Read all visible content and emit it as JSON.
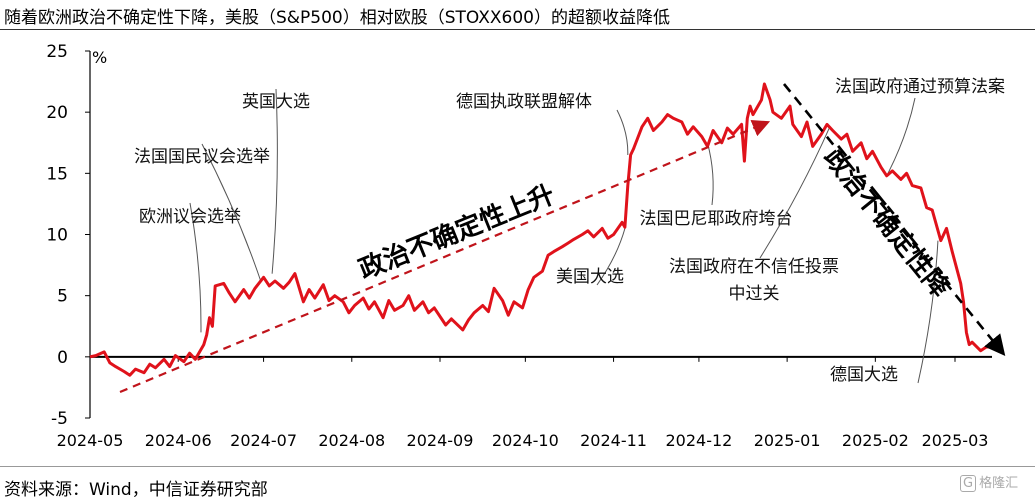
{
  "title": "随着欧洲政治不确定性下降，美股（S&P500）相对欧股（STOXX600）的超额收益降低",
  "source": "资料来源：Wind，中信证券研究部",
  "watermark": "格隆汇",
  "chart_data": {
    "type": "line",
    "unit": "%",
    "ylim": [
      -5,
      25
    ],
    "yticks": [
      -5,
      0,
      5,
      10,
      15,
      20,
      25
    ],
    "xticks": [
      "2024-05",
      "2024-06",
      "2024-07",
      "2024-08",
      "2024-09",
      "2024-10",
      "2024-11",
      "2024-12",
      "2025-01",
      "2025-02",
      "2025-03"
    ],
    "xlim": [
      "2024-05-01",
      "2025-03-14"
    ],
    "line_color": "#e0121b",
    "series": [
      {
        "name": "",
        "points": [
          [
            "2024-05-01",
            0.0
          ],
          [
            "2024-05-03",
            0.1
          ],
          [
            "2024-05-06",
            0.4
          ],
          [
            "2024-05-08",
            -0.5
          ],
          [
            "2024-05-10",
            -0.8
          ],
          [
            "2024-05-13",
            -1.2
          ],
          [
            "2024-05-15",
            -1.5
          ],
          [
            "2024-05-17",
            -1.0
          ],
          [
            "2024-05-20",
            -1.3
          ],
          [
            "2024-05-22",
            -0.6
          ],
          [
            "2024-05-24",
            -0.9
          ],
          [
            "2024-05-27",
            -0.2
          ],
          [
            "2024-05-29",
            -0.8
          ],
          [
            "2024-05-31",
            0.1
          ],
          [
            "2024-06-03",
            -0.4
          ],
          [
            "2024-06-05",
            0.3
          ],
          [
            "2024-06-07",
            -0.2
          ],
          [
            "2024-06-10",
            1.0
          ],
          [
            "2024-06-11",
            1.8
          ],
          [
            "2024-06-12",
            3.2
          ],
          [
            "2024-06-13",
            2.5
          ],
          [
            "2024-06-14",
            5.8
          ],
          [
            "2024-06-17",
            6.0
          ],
          [
            "2024-06-19",
            5.2
          ],
          [
            "2024-06-21",
            4.5
          ],
          [
            "2024-06-24",
            5.5
          ],
          [
            "2024-06-26",
            4.8
          ],
          [
            "2024-06-28",
            5.6
          ],
          [
            "2024-07-01",
            6.5
          ],
          [
            "2024-07-03",
            5.8
          ],
          [
            "2024-07-05",
            6.2
          ],
          [
            "2024-07-08",
            5.6
          ],
          [
            "2024-07-10",
            6.1
          ],
          [
            "2024-07-12",
            6.8
          ],
          [
            "2024-07-15",
            4.5
          ],
          [
            "2024-07-17",
            5.5
          ],
          [
            "2024-07-19",
            4.8
          ],
          [
            "2024-07-22",
            5.9
          ],
          [
            "2024-07-24",
            4.6
          ],
          [
            "2024-07-26",
            5.0
          ],
          [
            "2024-07-29",
            4.5
          ],
          [
            "2024-07-31",
            3.6
          ],
          [
            "2024-08-02",
            4.2
          ],
          [
            "2024-08-05",
            4.8
          ],
          [
            "2024-08-07",
            3.9
          ],
          [
            "2024-08-09",
            4.5
          ],
          [
            "2024-08-12",
            3.2
          ],
          [
            "2024-08-14",
            4.6
          ],
          [
            "2024-08-16",
            3.8
          ],
          [
            "2024-08-19",
            4.2
          ],
          [
            "2024-08-21",
            5.0
          ],
          [
            "2024-08-23",
            3.8
          ],
          [
            "2024-08-26",
            4.5
          ],
          [
            "2024-08-28",
            3.6
          ],
          [
            "2024-08-30",
            4.0
          ],
          [
            "2024-09-03",
            2.6
          ],
          [
            "2024-09-05",
            3.1
          ],
          [
            "2024-09-09",
            2.2
          ],
          [
            "2024-09-11",
            3.0
          ],
          [
            "2024-09-13",
            3.6
          ],
          [
            "2024-09-16",
            4.2
          ],
          [
            "2024-09-18",
            3.7
          ],
          [
            "2024-09-20",
            5.6
          ],
          [
            "2024-09-23",
            4.6
          ],
          [
            "2024-09-25",
            3.4
          ],
          [
            "2024-09-27",
            4.5
          ],
          [
            "2024-09-30",
            4.0
          ],
          [
            "2024-10-02",
            5.5
          ],
          [
            "2024-10-04",
            6.5
          ],
          [
            "2024-10-07",
            7.0
          ],
          [
            "2024-10-09",
            8.3
          ],
          [
            "2024-10-11",
            8.6
          ],
          [
            "2024-10-14",
            9.0
          ],
          [
            "2024-10-16",
            9.3
          ],
          [
            "2024-10-18",
            9.6
          ],
          [
            "2024-10-21",
            10.0
          ],
          [
            "2024-10-23",
            10.3
          ],
          [
            "2024-10-25",
            9.8
          ],
          [
            "2024-10-28",
            10.5
          ],
          [
            "2024-10-30",
            9.7
          ],
          [
            "2024-11-01",
            10.0
          ],
          [
            "2024-11-04",
            11.0
          ],
          [
            "2024-11-05",
            10.6
          ],
          [
            "2024-11-06",
            14.0
          ],
          [
            "2024-11-07",
            16.5
          ],
          [
            "2024-11-08",
            17.0
          ],
          [
            "2024-11-11",
            18.8
          ],
          [
            "2024-11-13",
            19.5
          ],
          [
            "2024-11-15",
            18.5
          ],
          [
            "2024-11-18",
            19.2
          ],
          [
            "2024-11-20",
            19.8
          ],
          [
            "2024-11-22",
            19.5
          ],
          [
            "2024-11-25",
            19.2
          ],
          [
            "2024-11-27",
            18.2
          ],
          [
            "2024-11-29",
            18.8
          ],
          [
            "2024-12-02",
            18.0
          ],
          [
            "2024-12-04",
            17.2
          ],
          [
            "2024-12-06",
            18.5
          ],
          [
            "2024-12-09",
            17.5
          ],
          [
            "2024-12-11",
            18.7
          ],
          [
            "2024-12-13",
            18.2
          ],
          [
            "2024-12-16",
            19.0
          ],
          [
            "2024-12-17",
            16.0
          ],
          [
            "2024-12-18",
            19.5
          ],
          [
            "2024-12-19",
            20.5
          ],
          [
            "2024-12-20",
            19.8
          ],
          [
            "2024-12-23",
            21.0
          ],
          [
            "2024-12-24",
            22.3
          ],
          [
            "2024-12-26",
            21.0
          ],
          [
            "2024-12-27",
            20.0
          ],
          [
            "2024-12-30",
            19.5
          ],
          [
            "2025-01-02",
            20.5
          ],
          [
            "2025-01-03",
            19.0
          ],
          [
            "2025-01-06",
            18.0
          ],
          [
            "2025-01-08",
            19.2
          ],
          [
            "2025-01-10",
            17.2
          ],
          [
            "2025-01-13",
            18.2
          ],
          [
            "2025-01-15",
            19.0
          ],
          [
            "2025-01-17",
            18.5
          ],
          [
            "2025-01-20",
            17.8
          ],
          [
            "2025-01-22",
            18.2
          ],
          [
            "2025-01-24",
            16.8
          ],
          [
            "2025-01-27",
            17.5
          ],
          [
            "2025-01-29",
            16.2
          ],
          [
            "2025-01-31",
            16.8
          ],
          [
            "2025-02-03",
            15.5
          ],
          [
            "2025-02-05",
            14.8
          ],
          [
            "2025-02-07",
            15.2
          ],
          [
            "2025-02-10",
            14.5
          ],
          [
            "2025-02-12",
            15.0
          ],
          [
            "2025-02-14",
            14.0
          ],
          [
            "2025-02-17",
            13.8
          ],
          [
            "2025-02-19",
            12.2
          ],
          [
            "2025-02-21",
            12.0
          ],
          [
            "2025-02-24",
            9.5
          ],
          [
            "2025-02-26",
            10.5
          ],
          [
            "2025-02-28",
            8.6
          ],
          [
            "2025-03-03",
            6.0
          ],
          [
            "2025-03-04",
            4.5
          ],
          [
            "2025-03-05",
            2.0
          ],
          [
            "2025-03-06",
            1.0
          ],
          [
            "2025-03-07",
            1.2
          ],
          [
            "2025-03-10",
            0.5
          ],
          [
            "2025-03-12",
            0.8
          ],
          [
            "2025-03-14",
            0.8
          ]
        ]
      }
    ],
    "annotations": [
      {
        "text": "欧洲议会选举",
        "date": "2024-06-09"
      },
      {
        "text": "法国国民议会选举",
        "date": "2024-06-30"
      },
      {
        "text": "英国大选",
        "date": "2024-07-04"
      },
      {
        "text": "美国大选",
        "date": "2024-11-05"
      },
      {
        "text": "德国执政联盟解体",
        "date": "2024-11-06"
      },
      {
        "text": "法国巴尼耶政府垮台",
        "date": "2024-12-04"
      },
      {
        "text": "法国政府在不信任投票",
        "text2": "中过关",
        "date": "2025-01-16"
      },
      {
        "text": "法国政府通过预算法案",
        "date": "2025-02-05"
      },
      {
        "text": "德国大选",
        "date": "2025-02-23"
      }
    ],
    "trend_up_label": "政治不确定性上升",
    "trend_down_label": "政治不确定性降"
  }
}
